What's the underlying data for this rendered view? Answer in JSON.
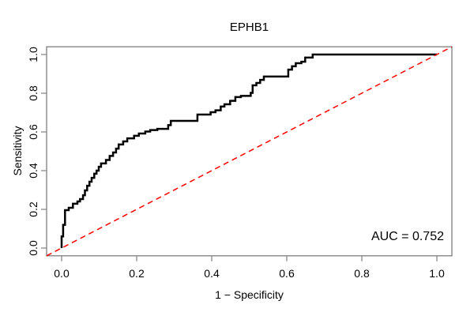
{
  "title": "EPHB1",
  "chart_data": {
    "type": "line",
    "subtype": "roc-curve",
    "title": "EPHB1",
    "xlabel": "1 − Specificity",
    "ylabel": "Sensitivity",
    "xlim": [
      0,
      1
    ],
    "ylim": [
      0,
      1
    ],
    "x_ticks": [
      "0.0",
      "0.2",
      "0.4",
      "0.6",
      "0.8",
      "1.0"
    ],
    "y_ticks": [
      "0.0",
      "0.2",
      "0.4",
      "0.6",
      "0.8",
      "1.0"
    ],
    "grid": false,
    "legend_position": "none",
    "auc": 0.752,
    "annotation": "AUC = 0.752",
    "series": [
      {
        "name": "roc-curve",
        "color": "#000000",
        "line_style": "solid",
        "line_width": 2.5,
        "points": [
          [
            0.0,
            0.0
          ],
          [
            0.0,
            0.06
          ],
          [
            0.004,
            0.06
          ],
          [
            0.004,
            0.12
          ],
          [
            0.009,
            0.12
          ],
          [
            0.009,
            0.196
          ],
          [
            0.019,
            0.196
          ],
          [
            0.019,
            0.208
          ],
          [
            0.03,
            0.208
          ],
          [
            0.03,
            0.229
          ],
          [
            0.042,
            0.229
          ],
          [
            0.042,
            0.241
          ],
          [
            0.049,
            0.241
          ],
          [
            0.049,
            0.253
          ],
          [
            0.057,
            0.253
          ],
          [
            0.057,
            0.273
          ],
          [
            0.062,
            0.273
          ],
          [
            0.062,
            0.298
          ],
          [
            0.068,
            0.298
          ],
          [
            0.068,
            0.322
          ],
          [
            0.074,
            0.322
          ],
          [
            0.074,
            0.343
          ],
          [
            0.08,
            0.343
          ],
          [
            0.08,
            0.363
          ],
          [
            0.087,
            0.363
          ],
          [
            0.087,
            0.384
          ],
          [
            0.093,
            0.384
          ],
          [
            0.093,
            0.4
          ],
          [
            0.099,
            0.4
          ],
          [
            0.099,
            0.42
          ],
          [
            0.105,
            0.42
          ],
          [
            0.105,
            0.437
          ],
          [
            0.118,
            0.437
          ],
          [
            0.118,
            0.455
          ],
          [
            0.128,
            0.455
          ],
          [
            0.128,
            0.476
          ],
          [
            0.137,
            0.476
          ],
          [
            0.137,
            0.494
          ],
          [
            0.145,
            0.494
          ],
          [
            0.145,
            0.514
          ],
          [
            0.152,
            0.514
          ],
          [
            0.152,
            0.535
          ],
          [
            0.164,
            0.535
          ],
          [
            0.164,
            0.551
          ],
          [
            0.175,
            0.551
          ],
          [
            0.175,
            0.567
          ],
          [
            0.193,
            0.567
          ],
          [
            0.193,
            0.58
          ],
          [
            0.206,
            0.58
          ],
          [
            0.206,
            0.592
          ],
          [
            0.223,
            0.592
          ],
          [
            0.223,
            0.602
          ],
          [
            0.236,
            0.602
          ],
          [
            0.236,
            0.61
          ],
          [
            0.255,
            0.61
          ],
          [
            0.255,
            0.616
          ],
          [
            0.284,
            0.616
          ],
          [
            0.284,
            0.635
          ],
          [
            0.291,
            0.635
          ],
          [
            0.291,
            0.657
          ],
          [
            0.362,
            0.657
          ],
          [
            0.362,
            0.69
          ],
          [
            0.397,
            0.69
          ],
          [
            0.397,
            0.702
          ],
          [
            0.41,
            0.702
          ],
          [
            0.41,
            0.712
          ],
          [
            0.424,
            0.712
          ],
          [
            0.424,
            0.731
          ],
          [
            0.434,
            0.731
          ],
          [
            0.434,
            0.743
          ],
          [
            0.449,
            0.743
          ],
          [
            0.449,
            0.761
          ],
          [
            0.463,
            0.761
          ],
          [
            0.463,
            0.78
          ],
          [
            0.478,
            0.78
          ],
          [
            0.478,
            0.786
          ],
          [
            0.504,
            0.786
          ],
          [
            0.504,
            0.802
          ],
          [
            0.509,
            0.802
          ],
          [
            0.509,
            0.841
          ],
          [
            0.519,
            0.841
          ],
          [
            0.519,
            0.853
          ],
          [
            0.529,
            0.853
          ],
          [
            0.529,
            0.869
          ],
          [
            0.539,
            0.869
          ],
          [
            0.539,
            0.886
          ],
          [
            0.556,
            0.886
          ],
          [
            0.604,
            0.886
          ],
          [
            0.604,
            0.922
          ],
          [
            0.614,
            0.922
          ],
          [
            0.614,
            0.939
          ],
          [
            0.624,
            0.939
          ],
          [
            0.624,
            0.955
          ],
          [
            0.639,
            0.955
          ],
          [
            0.639,
            0.963
          ],
          [
            0.649,
            0.963
          ],
          [
            0.649,
            0.984
          ],
          [
            0.669,
            0.984
          ],
          [
            0.669,
            1.0
          ],
          [
            0.693,
            1.0
          ],
          [
            1.0,
            1.0
          ]
        ]
      },
      {
        "name": "chance-diagonal",
        "color": "#ff0000",
        "line_style": "dashed",
        "line_width": 1.5,
        "points": [
          [
            0,
            0
          ],
          [
            1,
            1
          ]
        ]
      }
    ]
  },
  "colors": {
    "curve": "#000000",
    "diagonal": "#ff0000",
    "axis_box": "#737373",
    "tick": "#808080",
    "text": "#000000",
    "background": "#ffffff"
  }
}
